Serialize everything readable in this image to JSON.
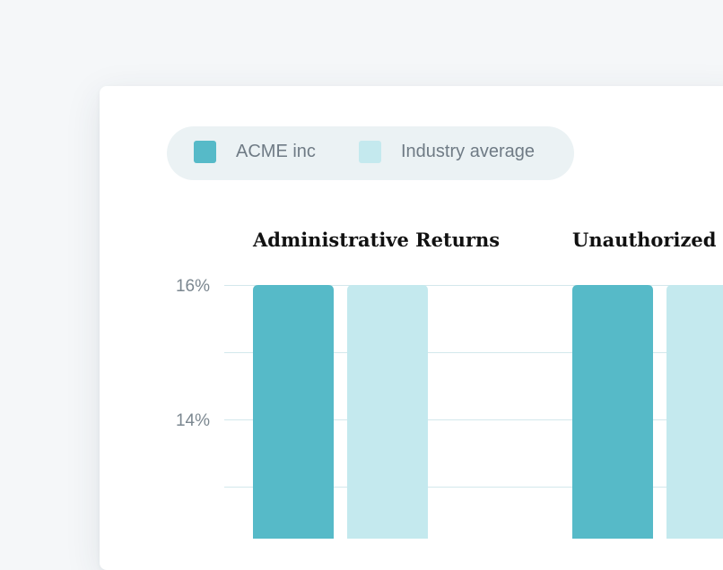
{
  "legend": {
    "items": [
      {
        "label": "ACME inc",
        "color": "#56bac8"
      },
      {
        "label": "Industry average",
        "color": "#c4e9ee"
      }
    ]
  },
  "chart_data": {
    "type": "bar",
    "categories": [
      "Administrative Returns",
      "Unauthorized I"
    ],
    "series": [
      {
        "name": "ACME inc",
        "color": "#56bac8",
        "values": [
          16,
          16
        ]
      },
      {
        "name": "Industry average",
        "color": "#c4e9ee",
        "values": [
          16,
          16
        ]
      }
    ],
    "yticks": [
      {
        "value": 16,
        "label": "16%"
      },
      {
        "value": 14,
        "label": "14%"
      }
    ],
    "ygrid": [
      16,
      15,
      14,
      13
    ],
    "ylim": [
      12,
      16
    ],
    "grid": true,
    "legend_position": "top-left"
  }
}
